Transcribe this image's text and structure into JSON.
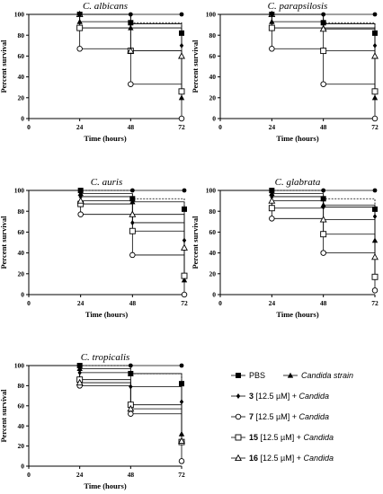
{
  "legend": [
    {
      "marker": "square-filled",
      "text": "PBS"
    },
    {
      "marker": "triangle-filled",
      "text": "Candida strain"
    },
    {
      "marker": "diamond-filled",
      "bold": "3",
      "text": " [12.5 µM] + ",
      "italic": "Candida"
    },
    {
      "marker": "circle-open",
      "bold": "7",
      "text": " [12.5 µM] + ",
      "italic": "Candida"
    },
    {
      "marker": "square-open",
      "bold": "15",
      "text": " [12.5 µM] + ",
      "italic": "Candida"
    },
    {
      "marker": "triangle-open",
      "bold": "16",
      "text": " [12.5 µM] + ",
      "italic": "Candida"
    }
  ],
  "chart_data": [
    {
      "type": "line",
      "title": "C. albicans",
      "xlabel": "Time (hours)",
      "ylabel": "Percent survival",
      "x_ticks": [
        "0",
        "24",
        "48",
        "72"
      ],
      "y_ticks": [
        "0",
        "20",
        "40",
        "60",
        "80",
        "100"
      ],
      "xlim": [
        0,
        72
      ],
      "ylim": [
        0,
        100
      ],
      "x": [
        0,
        24,
        48,
        72
      ],
      "series": [
        {
          "marker": "square-filled",
          "values": [
            100,
            100,
            92,
            82
          ]
        },
        {
          "marker": "triangle-filled",
          "values": [
            100,
            93,
            87,
            20
          ]
        },
        {
          "marker": "diamond-filled",
          "values": [
            100,
            100,
            91,
            70
          ]
        },
        {
          "marker": "circle-open",
          "values": [
            100,
            67,
            33,
            0
          ]
        },
        {
          "marker": "square-open",
          "values": [
            100,
            87,
            65,
            26
          ]
        },
        {
          "marker": "triangle-open",
          "values": [
            100,
            100,
            65,
            60
          ]
        },
        {
          "marker": "dot",
          "values": [
            100,
            100,
            100,
            100
          ]
        }
      ]
    },
    {
      "type": "line",
      "title": "C. parapsilosis",
      "xlabel": "Time (hours)",
      "ylabel": "Percent survival",
      "x_ticks": [
        "0",
        "24",
        "48",
        "72"
      ],
      "y_ticks": [
        "0",
        "20",
        "40",
        "60",
        "80",
        "100"
      ],
      "xlim": [
        0,
        72
      ],
      "ylim": [
        0,
        100
      ],
      "x": [
        0,
        24,
        48,
        72
      ],
      "series": [
        {
          "marker": "square-filled",
          "values": [
            100,
            100,
            92,
            82
          ]
        },
        {
          "marker": "triangle-filled",
          "values": [
            100,
            93,
            87,
            20
          ]
        },
        {
          "marker": "diamond-filled",
          "values": [
            100,
            100,
            91,
            70
          ]
        },
        {
          "marker": "circle-open",
          "values": [
            100,
            67,
            33,
            0
          ]
        },
        {
          "marker": "square-open",
          "values": [
            100,
            87,
            65,
            26
          ]
        },
        {
          "marker": "triangle-open",
          "values": [
            100,
            100,
            86,
            60
          ]
        },
        {
          "marker": "dot",
          "values": [
            100,
            100,
            100,
            100
          ]
        }
      ]
    },
    {
      "type": "line",
      "title": "C. auris",
      "xlabel": "Time (hours)",
      "ylabel": "Percent survival",
      "x_ticks": [
        "0",
        "24",
        "48",
        "72"
      ],
      "y_ticks": [
        "0",
        "20",
        "40",
        "60",
        "80",
        "100"
      ],
      "xlim": [
        0,
        72
      ],
      "ylim": [
        0,
        100
      ],
      "x": [
        0,
        24,
        48,
        72
      ],
      "series": [
        {
          "marker": "square-filled",
          "values": [
            100,
            100,
            92,
            82
          ]
        },
        {
          "marker": "triangle-filled",
          "values": [
            100,
            97,
            89,
            14
          ]
        },
        {
          "marker": "diamond-filled",
          "values": [
            100,
            94,
            69,
            52
          ]
        },
        {
          "marker": "circle-open",
          "values": [
            100,
            77,
            38,
            0
          ]
        },
        {
          "marker": "square-open",
          "values": [
            100,
            87,
            61,
            18
          ]
        },
        {
          "marker": "triangle-open",
          "values": [
            100,
            90,
            77,
            45
          ]
        },
        {
          "marker": "dot",
          "values": [
            100,
            100,
            100,
            100
          ]
        }
      ]
    },
    {
      "type": "line",
      "title": "C. glabrata",
      "xlabel": "Time (hours)",
      "ylabel": "Percent survival",
      "x_ticks": [
        "0",
        "24",
        "48",
        "72"
      ],
      "y_ticks": [
        "0",
        "20",
        "40",
        "60",
        "80",
        "100"
      ],
      "xlim": [
        0,
        72
      ],
      "ylim": [
        0,
        100
      ],
      "x": [
        0,
        24,
        48,
        72
      ],
      "series": [
        {
          "marker": "square-filled",
          "values": [
            100,
            100,
            92,
            82
          ]
        },
        {
          "marker": "triangle-filled",
          "values": [
            100,
            97,
            86,
            52
          ]
        },
        {
          "marker": "diamond-filled",
          "values": [
            100,
            94,
            84,
            75
          ]
        },
        {
          "marker": "circle-open",
          "values": [
            100,
            73,
            40,
            4
          ]
        },
        {
          "marker": "square-open",
          "values": [
            100,
            83,
            58,
            17
          ]
        },
        {
          "marker": "triangle-open",
          "values": [
            100,
            90,
            72,
            36
          ]
        },
        {
          "marker": "dot",
          "values": [
            100,
            100,
            100,
            100
          ]
        }
      ]
    },
    {
      "type": "line",
      "title": "C. tropicalis",
      "xlabel": "Time (hours)",
      "ylabel": "Percent survival",
      "x_ticks": [
        "0",
        "24",
        "48",
        "72"
      ],
      "y_ticks": [
        "0",
        "20",
        "40",
        "60",
        "80",
        "100"
      ],
      "xlim": [
        0,
        72
      ],
      "ylim": [
        0,
        100
      ],
      "x": [
        0,
        24,
        48,
        72
      ],
      "series": [
        {
          "marker": "square-filled",
          "values": [
            100,
            100,
            92,
            82
          ]
        },
        {
          "marker": "triangle-filled",
          "values": [
            100,
            97,
            92,
            32
          ]
        },
        {
          "marker": "diamond-filled",
          "values": [
            100,
            93,
            79,
            64
          ]
        },
        {
          "marker": "circle-open",
          "values": [
            100,
            80,
            52,
            5
          ]
        },
        {
          "marker": "square-open",
          "values": [
            100,
            86,
            61,
            24
          ]
        },
        {
          "marker": "triangle-open",
          "values": [
            100,
            83,
            57,
            25
          ]
        },
        {
          "marker": "dot",
          "values": [
            100,
            100,
            100,
            100
          ]
        }
      ]
    }
  ]
}
